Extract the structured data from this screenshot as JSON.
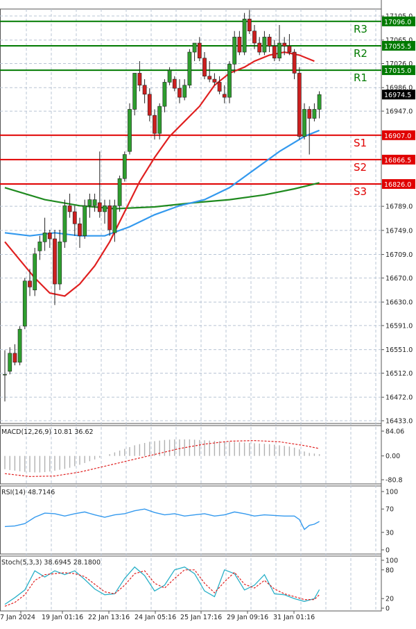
{
  "chart_data": {
    "type": "candlestick",
    "x_labels": [
      "7 Jan 2024",
      "19 Jan 01:16",
      "22 Jan 13:16",
      "24 Jan 05:16",
      "25 Jan 17:16",
      "29 Jan 09:16",
      "31 Jan 01:16"
    ],
    "price_panel": {
      "y_ticks": [
        "17105.0",
        "17065.0",
        "17026.0",
        "16986.0",
        "16947.0",
        "16907.0",
        "16866.5",
        "16826.0",
        "16789.0",
        "16749.0",
        "16709.0",
        "16670.0",
        "16630.0",
        "16591.0",
        "16551.0",
        "16512.0",
        "16472.0",
        "16433.0"
      ],
      "ylim": [
        16433.0,
        17105.0
      ],
      "current_price": 16974.5,
      "candles": [
        {
          "o": 16510,
          "h": 16550,
          "l": 16465,
          "c": 16510
        },
        {
          "o": 16515,
          "h": 16555,
          "l": 16510,
          "c": 16545
        },
        {
          "o": 16545,
          "h": 16560,
          "l": 16525,
          "c": 16530
        },
        {
          "o": 16530,
          "h": 16590,
          "l": 16525,
          "c": 16585
        },
        {
          "o": 16590,
          "h": 16670,
          "l": 16585,
          "c": 16665
        },
        {
          "o": 16665,
          "h": 16685,
          "l": 16640,
          "c": 16655
        },
        {
          "o": 16650,
          "h": 16720,
          "l": 16640,
          "c": 16710
        },
        {
          "o": 16715,
          "h": 16740,
          "l": 16700,
          "c": 16730
        },
        {
          "o": 16730,
          "h": 16770,
          "l": 16715,
          "c": 16745
        },
        {
          "o": 16745,
          "h": 16750,
          "l": 16720,
          "c": 16735
        },
        {
          "o": 16735,
          "h": 16750,
          "l": 16625,
          "c": 16660
        },
        {
          "o": 16660,
          "h": 16750,
          "l": 16650,
          "c": 16730
        },
        {
          "o": 16730,
          "h": 16800,
          "l": 16720,
          "c": 16790
        },
        {
          "o": 16790,
          "h": 16810,
          "l": 16770,
          "c": 16780
        },
        {
          "o": 16780,
          "h": 16790,
          "l": 16740,
          "c": 16760
        },
        {
          "o": 16760,
          "h": 16770,
          "l": 16720,
          "c": 16740
        },
        {
          "o": 16740,
          "h": 16800,
          "l": 16735,
          "c": 16790
        },
        {
          "o": 16790,
          "h": 16810,
          "l": 16770,
          "c": 16800
        },
        {
          "o": 16790,
          "h": 16810,
          "l": 16780,
          "c": 16800
        },
        {
          "o": 16795,
          "h": 16880,
          "l": 16770,
          "c": 16780
        },
        {
          "o": 16780,
          "h": 16800,
          "l": 16760,
          "c": 16790
        },
        {
          "o": 16790,
          "h": 16800,
          "l": 16740,
          "c": 16750
        },
        {
          "o": 16745,
          "h": 16800,
          "l": 16730,
          "c": 16790
        },
        {
          "o": 16790,
          "h": 16840,
          "l": 16780,
          "c": 16835
        },
        {
          "o": 16835,
          "h": 16880,
          "l": 16830,
          "c": 16875
        },
        {
          "o": 16880,
          "h": 16960,
          "l": 16875,
          "c": 16950
        },
        {
          "o": 16950,
          "h": 17010,
          "l": 16940,
          "c": 17010
        },
        {
          "o": 17010,
          "h": 17030,
          "l": 16980,
          "c": 16990
        },
        {
          "o": 16990,
          "h": 17000,
          "l": 16960,
          "c": 16975
        },
        {
          "o": 16975,
          "h": 16985,
          "l": 16930,
          "c": 16940
        },
        {
          "o": 16940,
          "h": 16950,
          "l": 16900,
          "c": 16910
        },
        {
          "o": 16910,
          "h": 16960,
          "l": 16900,
          "c": 16955
        },
        {
          "o": 16955,
          "h": 17000,
          "l": 16945,
          "c": 16995
        },
        {
          "o": 16995,
          "h": 17020,
          "l": 16990,
          "c": 17015
        },
        {
          "o": 17000,
          "h": 17005,
          "l": 16980,
          "c": 16985
        },
        {
          "o": 16985,
          "h": 17000,
          "l": 16960,
          "c": 16970
        },
        {
          "o": 16970,
          "h": 17000,
          "l": 16965,
          "c": 16990
        },
        {
          "o": 16990,
          "h": 17050,
          "l": 16985,
          "c": 17045
        },
        {
          "o": 17045,
          "h": 17060,
          "l": 17030,
          "c": 17060
        },
        {
          "o": 17060,
          "h": 17070,
          "l": 17030,
          "c": 17035
        },
        {
          "o": 17035,
          "h": 17045,
          "l": 17000,
          "c": 17005
        },
        {
          "o": 17005,
          "h": 17030,
          "l": 16995,
          "c": 17000
        },
        {
          "o": 17000,
          "h": 17010,
          "l": 16990,
          "c": 16995
        },
        {
          "o": 16995,
          "h": 17005,
          "l": 16975,
          "c": 16980
        },
        {
          "o": 16975,
          "h": 16990,
          "l": 16960,
          "c": 16970
        },
        {
          "o": 16970,
          "h": 17030,
          "l": 16960,
          "c": 17025
        },
        {
          "o": 17025,
          "h": 17080,
          "l": 17010,
          "c": 17070
        },
        {
          "o": 17070,
          "h": 17080,
          "l": 17040,
          "c": 17045
        },
        {
          "o": 17045,
          "h": 17110,
          "l": 17040,
          "c": 17100
        },
        {
          "o": 17100,
          "h": 17115,
          "l": 17075,
          "c": 17080
        },
        {
          "o": 17080,
          "h": 17090,
          "l": 17050,
          "c": 17060
        },
        {
          "o": 17060,
          "h": 17070,
          "l": 17040,
          "c": 17045
        },
        {
          "o": 17045,
          "h": 17080,
          "l": 17040,
          "c": 17070
        },
        {
          "o": 17070,
          "h": 17075,
          "l": 17045,
          "c": 17055
        },
        {
          "o": 17055,
          "h": 17065,
          "l": 17030,
          "c": 17035
        },
        {
          "o": 17035,
          "h": 17090,
          "l": 17030,
          "c": 17060
        },
        {
          "o": 17060,
          "h": 17070,
          "l": 17040,
          "c": 17055
        },
        {
          "o": 17055,
          "h": 17075,
          "l": 17040,
          "c": 17045
        },
        {
          "o": 17045,
          "h": 17050,
          "l": 17000,
          "c": 17010
        },
        {
          "o": 17010,
          "h": 17020,
          "l": 16900,
          "c": 16905
        },
        {
          "o": 16905,
          "h": 16960,
          "l": 16900,
          "c": 16950
        },
        {
          "o": 16950,
          "h": 16955,
          "l": 16875,
          "c": 16935
        },
        {
          "o": 16935,
          "h": 16960,
          "l": 16930,
          "c": 16950
        },
        {
          "o": 16950,
          "h": 16980,
          "l": 16935,
          "c": 16974.5
        }
      ],
      "ma_fast": [
        [
          0,
          16730
        ],
        [
          3,
          16700
        ],
        [
          6,
          16670
        ],
        [
          9,
          16645
        ],
        [
          12,
          16640
        ],
        [
          15,
          16660
        ],
        [
          18,
          16690
        ],
        [
          21,
          16730
        ],
        [
          24,
          16780
        ],
        [
          27,
          16830
        ],
        [
          30,
          16870
        ],
        [
          33,
          16905
        ],
        [
          36,
          16930
        ],
        [
          39,
          16955
        ],
        [
          42,
          16990
        ],
        [
          45,
          17010
        ],
        [
          48,
          17020
        ],
        [
          50,
          17030
        ],
        [
          53,
          17040
        ],
        [
          56,
          17045
        ],
        [
          59,
          17040
        ],
        [
          62,
          17030
        ]
      ],
      "ma_medium": [
        [
          0,
          16745
        ],
        [
          5,
          16740
        ],
        [
          10,
          16745
        ],
        [
          15,
          16740
        ],
        [
          20,
          16740
        ],
        [
          25,
          16755
        ],
        [
          30,
          16775
        ],
        [
          35,
          16790
        ],
        [
          40,
          16800
        ],
        [
          45,
          16820
        ],
        [
          50,
          16850
        ],
        [
          55,
          16880
        ],
        [
          60,
          16905
        ],
        [
          63,
          16915
        ]
      ],
      "ma_slow": [
        [
          0,
          16820
        ],
        [
          8,
          16800
        ],
        [
          15,
          16790
        ],
        [
          22,
          16785
        ],
        [
          30,
          16788
        ],
        [
          38,
          16795
        ],
        [
          45,
          16800
        ],
        [
          52,
          16808
        ],
        [
          58,
          16818
        ],
        [
          63,
          16828
        ]
      ],
      "levels": [
        {
          "name": "R3",
          "value": 17096.0,
          "label": "17096.0",
          "color": "#007a00"
        },
        {
          "name": "R2",
          "value": 17055.5,
          "label": "17055.5",
          "color": "#007a00"
        },
        {
          "name": "R1",
          "value": 17015.0,
          "label": "17015.0",
          "color": "#007a00"
        },
        {
          "name": "S1",
          "value": 16907.0,
          "label": "16907.0",
          "color": "#e00000"
        },
        {
          "name": "S2",
          "value": 16866.5,
          "label": "16866.5",
          "color": "#e00000"
        },
        {
          "name": "S3",
          "value": 16826.0,
          "label": "16826.0",
          "color": "#e00000"
        }
      ]
    },
    "macd_panel": {
      "label": "MACD(12,26,9) 10.81 36.62",
      "y_ticks": [
        "84.06",
        "0.00",
        "-80.8"
      ],
      "ylim": [
        -80.8,
        84.06
      ],
      "histogram": [
        -45,
        -48,
        -50,
        -52,
        -54,
        -55,
        -56,
        -56,
        -55,
        -53,
        -50,
        -47,
        -44,
        -40,
        -35,
        -30,
        -24,
        -18,
        -12,
        -6,
        0,
        6,
        12,
        18,
        24,
        30,
        36,
        40,
        44,
        48,
        50,
        52,
        54,
        55,
        56,
        56,
        56,
        56,
        55,
        54,
        53,
        52,
        51,
        50,
        49,
        48,
        47,
        46,
        45,
        44,
        43,
        42,
        41,
        40,
        38,
        36,
        34,
        32,
        28,
        22,
        15,
        10,
        8,
        6
      ],
      "signal": [
        [
          0,
          -60
        ],
        [
          5,
          -70
        ],
        [
          10,
          -68
        ],
        [
          15,
          -55
        ],
        [
          20,
          -35
        ],
        [
          25,
          -15
        ],
        [
          30,
          5
        ],
        [
          35,
          25
        ],
        [
          40,
          40
        ],
        [
          45,
          50
        ],
        [
          50,
          52
        ],
        [
          55,
          48
        ],
        [
          60,
          35
        ],
        [
          63,
          25
        ]
      ]
    },
    "rsi_panel": {
      "label": "RSI(14) 48.7146",
      "y_ticks": [
        "100",
        "70",
        "30",
        "0"
      ],
      "ylim": [
        0,
        100
      ],
      "values": [
        [
          0,
          40
        ],
        [
          2,
          41
        ],
        [
          4,
          45
        ],
        [
          6,
          56
        ],
        [
          8,
          63
        ],
        [
          10,
          62
        ],
        [
          12,
          58
        ],
        [
          14,
          62
        ],
        [
          16,
          65
        ],
        [
          18,
          60
        ],
        [
          20,
          56
        ],
        [
          22,
          60
        ],
        [
          24,
          62
        ],
        [
          26,
          67
        ],
        [
          28,
          70
        ],
        [
          30,
          64
        ],
        [
          32,
          60
        ],
        [
          34,
          62
        ],
        [
          36,
          58
        ],
        [
          38,
          60
        ],
        [
          40,
          62
        ],
        [
          42,
          58
        ],
        [
          44,
          60
        ],
        [
          46,
          65
        ],
        [
          48,
          62
        ],
        [
          50,
          58
        ],
        [
          52,
          60
        ],
        [
          54,
          59
        ],
        [
          56,
          58
        ],
        [
          58,
          58
        ],
        [
          59,
          52
        ],
        [
          60,
          35
        ],
        [
          61,
          42
        ],
        [
          62,
          44
        ],
        [
          63,
          48.7
        ]
      ]
    },
    "stoch_panel": {
      "label": "Stoch(5,3,3) 38.6945 28.1800",
      "y_ticks": [
        "100",
        "80",
        "20",
        "0"
      ],
      "ylim": [
        0,
        100
      ],
      "k": [
        [
          0,
          8
        ],
        [
          2,
          22
        ],
        [
          4,
          38
        ],
        [
          6,
          78
        ],
        [
          8,
          65
        ],
        [
          10,
          78
        ],
        [
          12,
          70
        ],
        [
          14,
          78
        ],
        [
          16,
          60
        ],
        [
          18,
          40
        ],
        [
          20,
          28
        ],
        [
          22,
          30
        ],
        [
          24,
          62
        ],
        [
          26,
          86
        ],
        [
          28,
          68
        ],
        [
          30,
          36
        ],
        [
          32,
          48
        ],
        [
          34,
          80
        ],
        [
          36,
          86
        ],
        [
          38,
          72
        ],
        [
          40,
          36
        ],
        [
          42,
          24
        ],
        [
          44,
          80
        ],
        [
          46,
          72
        ],
        [
          48,
          38
        ],
        [
          50,
          48
        ],
        [
          52,
          70
        ],
        [
          54,
          30
        ],
        [
          56,
          28
        ],
        [
          58,
          20
        ],
        [
          60,
          14
        ],
        [
          62,
          20
        ],
        [
          63,
          38.7
        ]
      ],
      "d": [
        [
          0,
          4
        ],
        [
          2,
          12
        ],
        [
          4,
          28
        ],
        [
          6,
          58
        ],
        [
          8,
          70
        ],
        [
          10,
          72
        ],
        [
          12,
          74
        ],
        [
          14,
          72
        ],
        [
          16,
          66
        ],
        [
          18,
          50
        ],
        [
          20,
          34
        ],
        [
          22,
          30
        ],
        [
          24,
          48
        ],
        [
          26,
          72
        ],
        [
          28,
          78
        ],
        [
          30,
          52
        ],
        [
          32,
          42
        ],
        [
          34,
          62
        ],
        [
          36,
          80
        ],
        [
          38,
          80
        ],
        [
          40,
          52
        ],
        [
          42,
          32
        ],
        [
          44,
          55
        ],
        [
          46,
          75
        ],
        [
          48,
          50
        ],
        [
          50,
          42
        ],
        [
          52,
          58
        ],
        [
          54,
          40
        ],
        [
          56,
          30
        ],
        [
          58,
          24
        ],
        [
          60,
          18
        ],
        [
          62,
          18
        ],
        [
          63,
          28.18
        ]
      ]
    }
  }
}
